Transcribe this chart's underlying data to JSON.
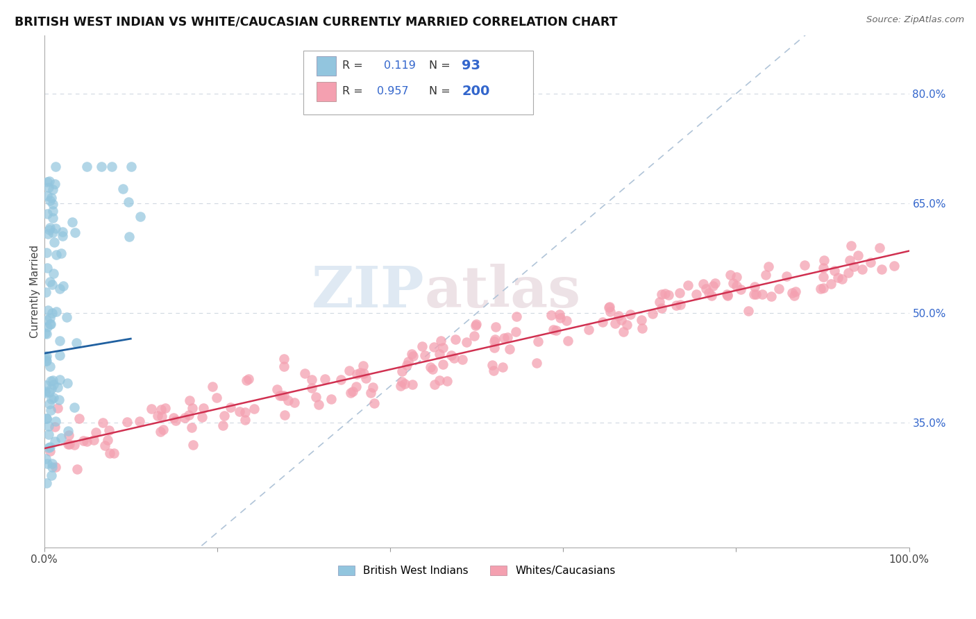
{
  "title": "BRITISH WEST INDIAN VS WHITE/CAUCASIAN CURRENTLY MARRIED CORRELATION CHART",
  "source": "Source: ZipAtlas.com",
  "ylabel": "Currently Married",
  "xlim": [
    0.0,
    1.0
  ],
  "ylim": [
    0.18,
    0.88
  ],
  "x_ticks": [
    0.0,
    0.2,
    0.4,
    0.6,
    0.8,
    1.0
  ],
  "x_tick_labels": [
    "0.0%",
    "",
    "",
    "",
    "",
    "100.0%"
  ],
  "y_tick_labels_right": [
    "80.0%",
    "65.0%",
    "50.0%",
    "35.0%"
  ],
  "y_tick_positions_right": [
    0.8,
    0.65,
    0.5,
    0.35
  ],
  "blue_R": "0.119",
  "blue_N": "93",
  "pink_R": "0.957",
  "pink_N": "200",
  "blue_color": "#92c5de",
  "pink_color": "#f4a0b0",
  "blue_line_color": "#2060a0",
  "pink_line_color": "#d03050",
  "diagonal_color": "#b0c4d8",
  "watermark_zip": "ZIP",
  "watermark_atlas": "atlas",
  "legend_label_blue": "British West Indians",
  "legend_label_pink": "Whites/Caucasians",
  "blue_seed": 42,
  "pink_seed": 7,
  "pink_line_x0": 0.0,
  "pink_line_y0": 0.315,
  "pink_line_x1": 1.0,
  "pink_line_y1": 0.585,
  "blue_line_x0": 0.0,
  "blue_line_y0": 0.445,
  "blue_line_x1": 0.1,
  "blue_line_y1": 0.465
}
